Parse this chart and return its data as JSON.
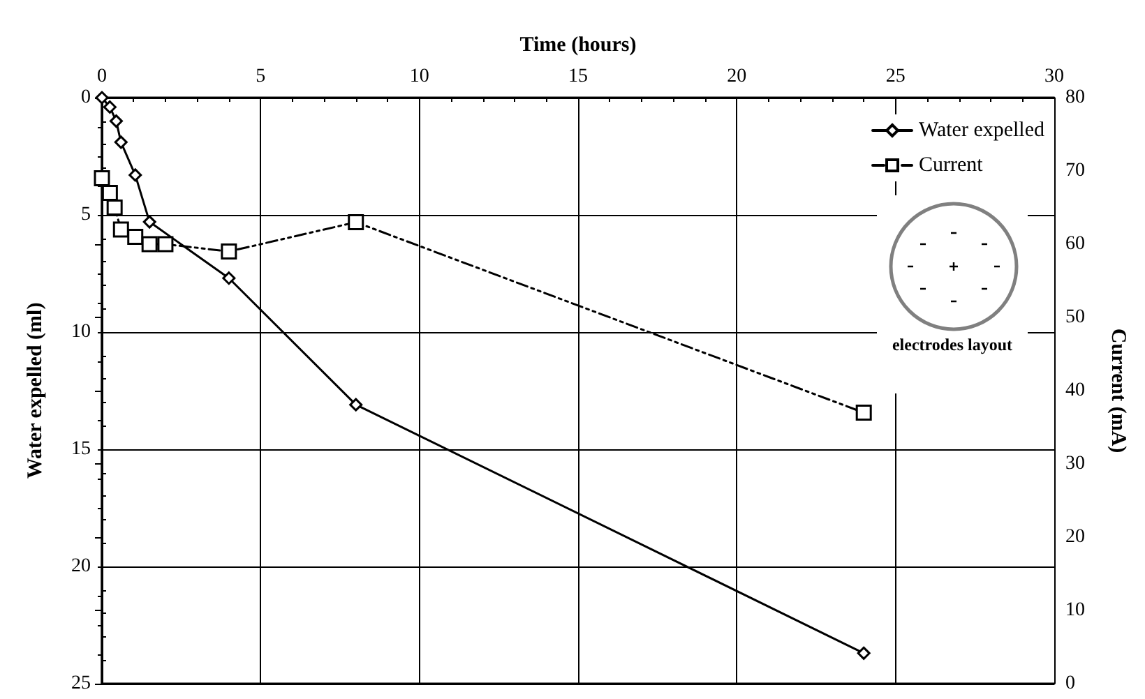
{
  "chart_data": {
    "type": "line",
    "xlabel": "Time (hours)",
    "ylabel": "Water expelled (ml)",
    "y2label": "Current (mA)",
    "xlim": [
      0,
      30
    ],
    "xticks": [
      0,
      5,
      10,
      15,
      20,
      25,
      30
    ],
    "ylim": [
      25,
      0
    ],
    "yticks": [
      0,
      5,
      10,
      15,
      20,
      25
    ],
    "y2lim": [
      0,
      80
    ],
    "y2ticks": [
      0,
      10,
      20,
      30,
      40,
      50,
      60,
      70,
      80
    ],
    "series": [
      {
        "name": "Water expelled",
        "color": "#000000",
        "marker": "diamond",
        "line_style": "solid",
        "x": [
          0,
          0.25,
          0.45,
          0.6,
          1.05,
          1.5,
          4,
          8,
          24
        ],
        "values": [
          0,
          0.4,
          1.0,
          1.9,
          3.3,
          5.3,
          7.7,
          13.1,
          23.7
        ]
      },
      {
        "name": "Current",
        "color": "#000000",
        "marker": "square",
        "line_style": "dashed",
        "axis": "y2",
        "x": [
          0,
          0.25,
          0.4,
          0.6,
          1.05,
          1.5,
          2,
          4,
          8,
          24
        ],
        "values": [
          69,
          67,
          65,
          62,
          61,
          60,
          60,
          59,
          63,
          37
        ]
      }
    ],
    "grid": true,
    "legend": "top right",
    "annotations": [
      "electrodes layout"
    ]
  }
}
